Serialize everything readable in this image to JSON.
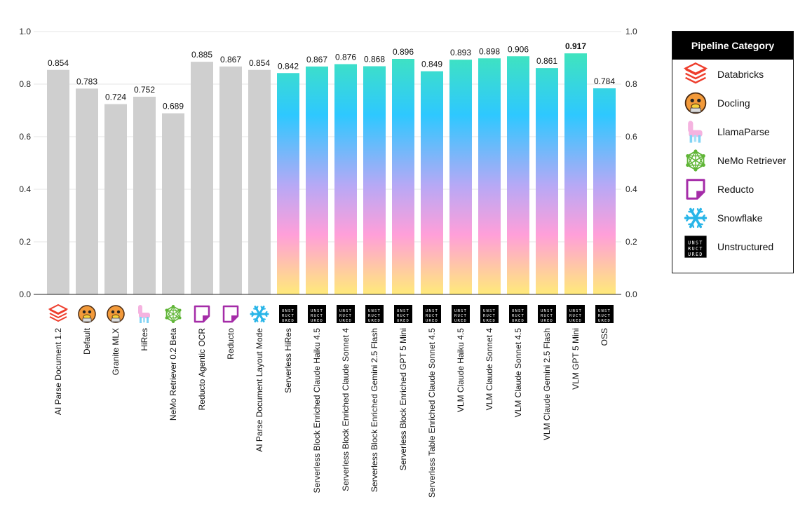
{
  "chart_data": {
    "type": "bar",
    "title": "",
    "xlabel": "",
    "ylabel": "",
    "ylim": [
      0,
      1.0
    ],
    "y_ticks": [
      "0.0",
      "0.2",
      "0.4",
      "0.6",
      "0.8",
      "1.0"
    ],
    "grid": true,
    "bars": [
      {
        "label": "AI Parse Document 1.2",
        "value": 0.854,
        "value_label": "0.854",
        "category": "Databricks",
        "style": "gray"
      },
      {
        "label": "Default",
        "value": 0.783,
        "value_label": "0.783",
        "category": "Docling",
        "style": "gray"
      },
      {
        "label": "Granite MLX",
        "value": 0.724,
        "value_label": "0.724",
        "category": "Docling",
        "style": "gray"
      },
      {
        "label": "HiRes",
        "value": 0.752,
        "value_label": "0.752",
        "category": "LlamaParse",
        "style": "gray"
      },
      {
        "label": "NeMo Retriever 0.2 Beta",
        "value": 0.689,
        "value_label": "0.689",
        "category": "NeMo Retriever",
        "style": "gray"
      },
      {
        "label": "Reducto Agentic OCR",
        "value": 0.885,
        "value_label": "0.885",
        "category": "Reducto",
        "style": "gray"
      },
      {
        "label": "Reducto",
        "value": 0.867,
        "value_label": "0.867",
        "category": "Reducto",
        "style": "gray"
      },
      {
        "label": "AI Parse Document Layout Mode",
        "value": 0.854,
        "value_label": "0.854",
        "category": "Snowflake",
        "style": "gray"
      },
      {
        "label": "Serverless HiRes",
        "value": 0.842,
        "value_label": "0.842",
        "category": "Unstructured",
        "style": "gradient"
      },
      {
        "label": "Serverless Block Enriched Claude Haiku 4.5",
        "value": 0.867,
        "value_label": "0.867",
        "category": "Unstructured",
        "style": "gradient"
      },
      {
        "label": "Serverless Block Enriched Claude Sonnet 4",
        "value": 0.876,
        "value_label": "0.876",
        "category": "Unstructured",
        "style": "gradient"
      },
      {
        "label": "Serverless Block Enriched Gemini 2.5 Flash",
        "value": 0.868,
        "value_label": "0.868",
        "category": "Unstructured",
        "style": "gradient"
      },
      {
        "label": "Serverless Block Enriched GPT 5 Mini",
        "value": 0.896,
        "value_label": "0.896",
        "category": "Unstructured",
        "style": "gradient"
      },
      {
        "label": "Serverless Table Enriched Claude Sonnet 4.5",
        "value": 0.849,
        "value_label": "0.849",
        "category": "Unstructured",
        "style": "gradient"
      },
      {
        "label": "VLM Claude Haiku 4.5",
        "value": 0.893,
        "value_label": "0.893",
        "category": "Unstructured",
        "style": "gradient"
      },
      {
        "label": "VLM Claude  Sonnet 4",
        "value": 0.898,
        "value_label": "0.898",
        "category": "Unstructured",
        "style": "gradient"
      },
      {
        "label": "VLM Claude Sonnet 4.5",
        "value": 0.906,
        "value_label": "0.906",
        "category": "Unstructured",
        "style": "gradient"
      },
      {
        "label": "VLM Claude  Gemini 2.5 Flash",
        "value": 0.861,
        "value_label": "0.861",
        "category": "Unstructured",
        "style": "gradient"
      },
      {
        "label": "VLM  GPT 5 Mini",
        "value": 0.917,
        "value_label": "0.917",
        "category": "Unstructured",
        "style": "gradient",
        "highlight": true
      },
      {
        "label": "OSS",
        "value": 0.784,
        "value_label": "0.784",
        "category": "Unstructured",
        "style": "gradient"
      }
    ]
  },
  "legend": {
    "title": "Pipeline Category",
    "items": [
      {
        "label": "Databricks",
        "icon": "databricks-icon"
      },
      {
        "label": "Docling",
        "icon": "docling-icon"
      },
      {
        "label": "LlamaParse",
        "icon": "llamaparse-icon"
      },
      {
        "label": "NeMo Retriever",
        "icon": "nemo-retriever-icon"
      },
      {
        "label": "Reducto",
        "icon": "reducto-icon"
      },
      {
        "label": "Snowflake",
        "icon": "snowflake-icon"
      },
      {
        "label": "Unstructured",
        "icon": "unstructured-icon"
      }
    ]
  },
  "logo_text": {
    "unstructured": [
      "UNST",
      "RUCT",
      "URED"
    ]
  },
  "colors": {
    "gray_bar": "#cfcfcf",
    "gradient_top": "#3fe3c0",
    "gradient_upper": "#2ec8ff",
    "gradient_mid": "#b9a8f5",
    "gradient_lower": "#ff9fd9",
    "gradient_bottom": "#ffea7a",
    "databricks": "#ee3d2c",
    "nemo": "#5fb536",
    "reducto": "#a52ca8",
    "snowflake": "#29b5e8",
    "docling": "#f08a30"
  }
}
